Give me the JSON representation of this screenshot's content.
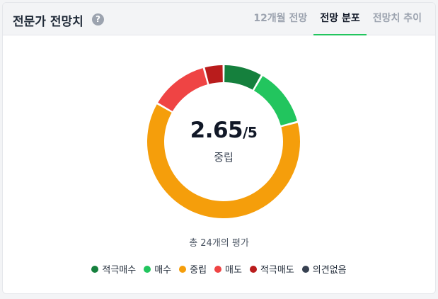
{
  "header": {
    "title": "전문가 전망치",
    "help_symbol": "?",
    "tabs": [
      {
        "label": "12개월 전망",
        "active": false
      },
      {
        "label": "전망 분포",
        "active": true
      },
      {
        "label": "전망치 추이",
        "active": false
      }
    ]
  },
  "summary": {
    "score": "2.65",
    "max": "/5",
    "rating_label": "중립",
    "total_text": "총 24개의 평가"
  },
  "chart_data": {
    "type": "pie",
    "categories": [
      "적극매수",
      "매수",
      "중립",
      "매도",
      "적극매도",
      "의견없음"
    ],
    "values": [
      2,
      3,
      15,
      3,
      1,
      0
    ],
    "colors": [
      "#15803d",
      "#22c55e",
      "#f59e0b",
      "#ef4444",
      "#b91c1c",
      "#374151"
    ],
    "legend_position": "bottom"
  }
}
